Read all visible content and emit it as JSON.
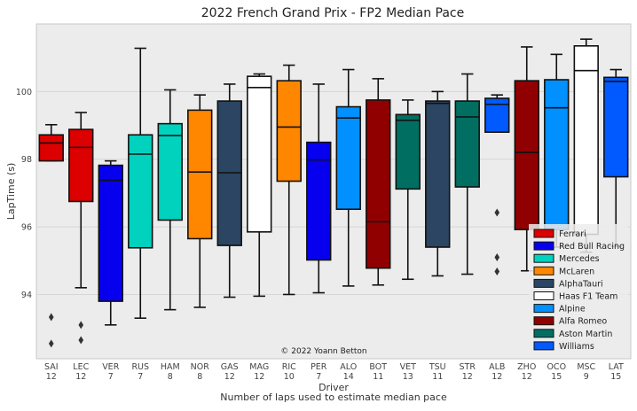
{
  "chart_data": {
    "type": "box",
    "title": "2022 French Grand Prix - FP2 Median Pace",
    "xlabel": "Driver",
    "xlabel2": "Number of laps used to estimate median pace",
    "ylabel": "LapTime (s)",
    "ylim": [
      92.1,
      102.0
    ],
    "yticks": [
      94,
      96,
      98,
      100
    ],
    "grid": true,
    "legend_position": "bottom-right",
    "annotation": "© 2022 Yoann Betton",
    "teams": [
      {
        "name": "Ferrari",
        "color": "#dc0000"
      },
      {
        "name": "Red Bull Racing",
        "color": "#0600ef"
      },
      {
        "name": "Mercedes",
        "color": "#00d2be"
      },
      {
        "name": "McLaren",
        "color": "#ff8700"
      },
      {
        "name": "AlphaTauri",
        "color": "#2b4562"
      },
      {
        "name": "Haas F1 Team",
        "color": "#ffffff"
      },
      {
        "name": "Alpine",
        "color": "#0090ff"
      },
      {
        "name": "Alfa Romeo",
        "color": "#900000"
      },
      {
        "name": "Aston Martin",
        "color": "#006f62"
      },
      {
        "name": "Williams",
        "color": "#005aff"
      }
    ],
    "drivers": [
      {
        "driver": "SAI",
        "laps": "12",
        "color": "#dc0000",
        "whislo": 97.95,
        "q1": 97.95,
        "med": 98.48,
        "q3": 98.72,
        "whishi": 99.02,
        "fliers": [
          93.33,
          92.55
        ]
      },
      {
        "driver": "LEC",
        "laps": "12",
        "color": "#dc0000",
        "whislo": 94.2,
        "q1": 96.75,
        "med": 98.35,
        "q3": 98.88,
        "whishi": 99.38,
        "fliers": [
          93.1,
          92.65
        ]
      },
      {
        "driver": "VER",
        "laps": "7",
        "color": "#0600ef",
        "whislo": 93.1,
        "q1": 93.8,
        "med": 97.38,
        "q3": 97.82,
        "whishi": 97.95,
        "fliers": []
      },
      {
        "driver": "RUS",
        "laps": "7",
        "color": "#00d2be",
        "whislo": 93.3,
        "q1": 95.38,
        "med": 98.15,
        "q3": 98.72,
        "whishi": 101.28,
        "fliers": []
      },
      {
        "driver": "HAM",
        "laps": "8",
        "color": "#00d2be",
        "whislo": 93.55,
        "q1": 96.2,
        "med": 98.7,
        "q3": 99.05,
        "whishi": 100.05,
        "fliers": []
      },
      {
        "driver": "NOR",
        "laps": "8",
        "color": "#ff8700",
        "whislo": 93.62,
        "q1": 95.65,
        "med": 97.62,
        "q3": 99.45,
        "whishi": 99.9,
        "fliers": []
      },
      {
        "driver": "GAS",
        "laps": "12",
        "color": "#2b4562",
        "whislo": 93.92,
        "q1": 95.45,
        "med": 97.6,
        "q3": 99.72,
        "whishi": 100.22,
        "fliers": []
      },
      {
        "driver": "MAG",
        "laps": "12",
        "color": "#ffffff",
        "whislo": 93.95,
        "q1": 95.85,
        "med": 100.12,
        "q3": 100.45,
        "whishi": 100.52,
        "fliers": []
      },
      {
        "driver": "RIC",
        "laps": "10",
        "color": "#ff8700",
        "whislo": 94.0,
        "q1": 97.35,
        "med": 98.95,
        "q3": 100.32,
        "whishi": 100.78,
        "fliers": []
      },
      {
        "driver": "PER",
        "laps": "7",
        "color": "#0600ef",
        "whislo": 94.05,
        "q1": 95.02,
        "med": 97.98,
        "q3": 98.5,
        "whishi": 100.22,
        "fliers": []
      },
      {
        "driver": "ALO",
        "laps": "14",
        "color": "#0090ff",
        "whislo": 94.25,
        "q1": 96.52,
        "med": 99.22,
        "q3": 99.55,
        "whishi": 100.65,
        "fliers": []
      },
      {
        "driver": "BOT",
        "laps": "11",
        "color": "#900000",
        "whislo": 94.28,
        "q1": 94.78,
        "med": 96.15,
        "q3": 99.75,
        "whishi": 100.38,
        "fliers": []
      },
      {
        "driver": "VET",
        "laps": "13",
        "color": "#006f62",
        "whislo": 94.45,
        "q1": 97.12,
        "med": 99.15,
        "q3": 99.32,
        "whishi": 99.75,
        "fliers": []
      },
      {
        "driver": "TSU",
        "laps": "11",
        "color": "#2b4562",
        "whislo": 94.55,
        "q1": 95.4,
        "med": 99.65,
        "q3": 99.72,
        "whishi": 100.0,
        "fliers": []
      },
      {
        "driver": "STR",
        "laps": "12",
        "color": "#006f62",
        "whislo": 94.6,
        "q1": 97.18,
        "med": 99.25,
        "q3": 99.72,
        "whishi": 100.52,
        "fliers": []
      },
      {
        "driver": "ALB",
        "laps": "12",
        "color": "#005aff",
        "whislo": 98.8,
        "q1": 98.8,
        "med": 99.62,
        "q3": 99.8,
        "whishi": 99.9,
        "fliers": [
          96.42,
          95.1,
          94.68
        ]
      },
      {
        "driver": "ZHO",
        "laps": "12",
        "color": "#900000",
        "whislo": 94.7,
        "q1": 95.92,
        "med": 98.2,
        "q3": 100.32,
        "whishi": 101.32,
        "fliers": []
      },
      {
        "driver": "OCO",
        "laps": "15",
        "color": "#0090ff",
        "whislo": 95.4,
        "q1": 95.92,
        "med": 99.52,
        "q3": 100.35,
        "whishi": 101.1,
        "fliers": []
      },
      {
        "driver": "MSC",
        "laps": "9",
        "color": "#ffffff",
        "whislo": 95.25,
        "q1": 95.78,
        "med": 100.62,
        "q3": 101.35,
        "whishi": 101.55,
        "fliers": []
      },
      {
        "driver": "LAT",
        "laps": "15",
        "color": "#005aff",
        "whislo": 95.42,
        "q1": 97.48,
        "med": 100.3,
        "q3": 100.42,
        "whishi": 100.65,
        "fliers": []
      }
    ]
  }
}
